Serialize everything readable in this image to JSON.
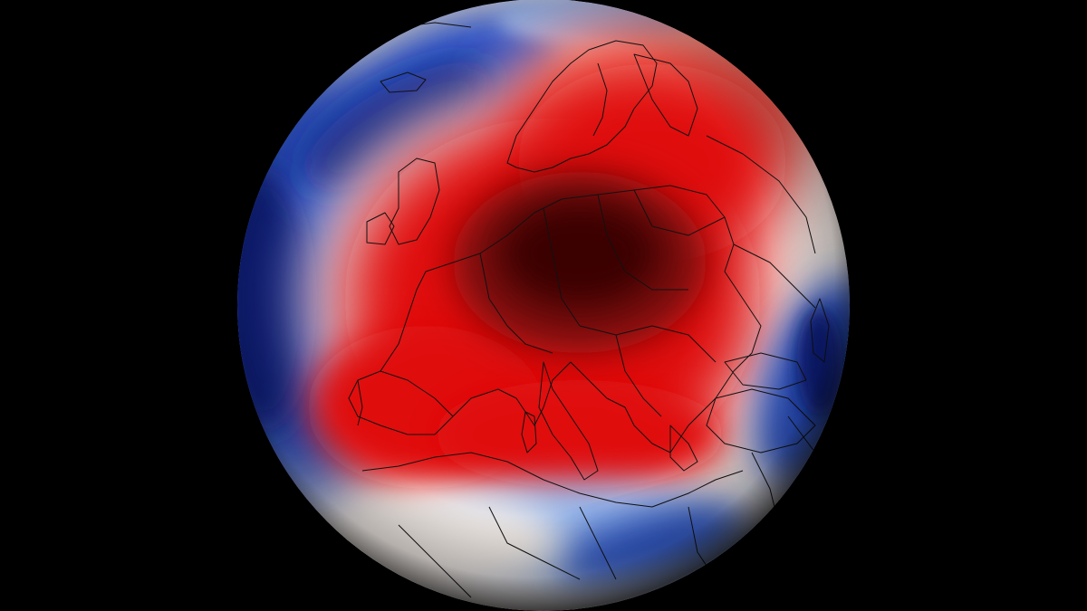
{
  "view": {
    "type": "orthographic temperature anomaly globe",
    "region_centered": "Europe",
    "background_color": "#000000"
  },
  "palette": {
    "extreme_warm": "#3a0000",
    "very_warm": "#7a0a0a",
    "warm": "#e01010",
    "mild_warm": "#f08070",
    "neutral": "#f2ebe6",
    "mild_cold": "#8fb0e8",
    "cold": "#2a52c8",
    "very_cold": "#0a1f7a",
    "border_line": "#111111"
  },
  "layers": {
    "anomaly_field": "shaded",
    "country_borders": "shown",
    "coastlines": "shown",
    "limb_shading": "shown"
  }
}
